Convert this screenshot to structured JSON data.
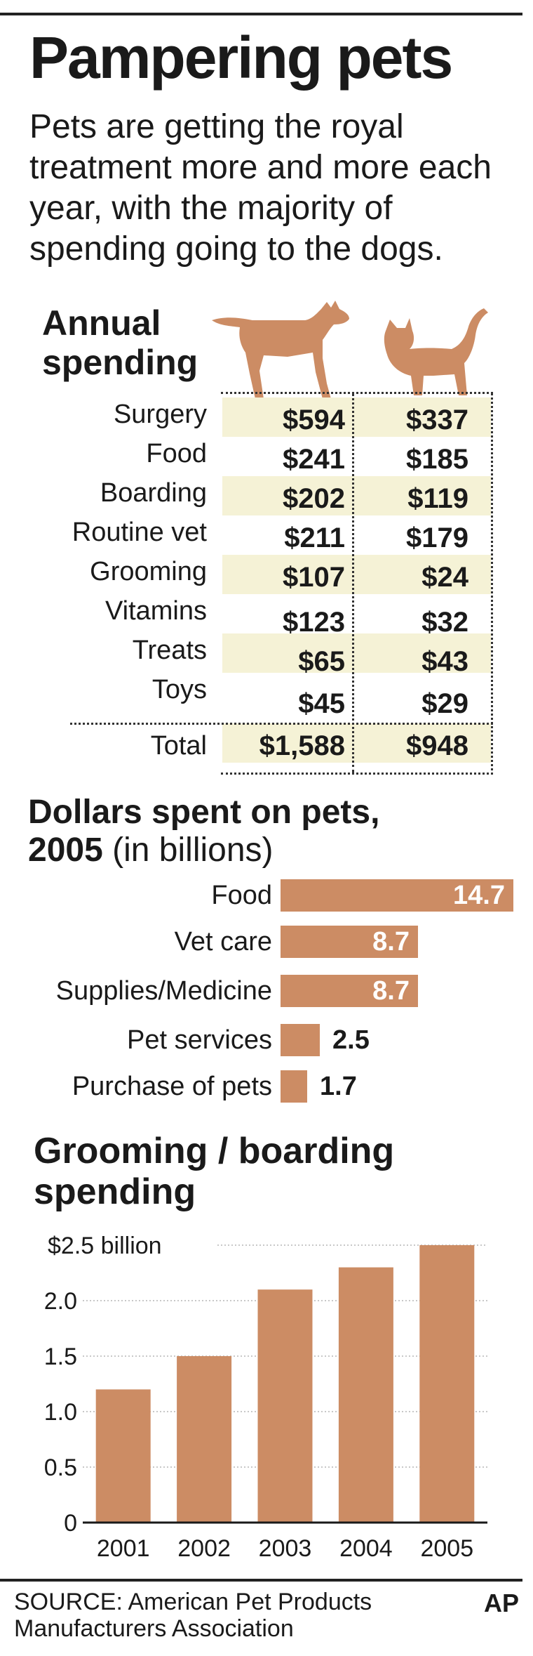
{
  "title": "Pampering pets",
  "intro": "Pets are getting the royal treatment more and more each year, with the majority of spending going to the dogs.",
  "annual": {
    "heading_line1": "Annual",
    "heading_line2": "spending",
    "rows": [
      {
        "label": "Surgery",
        "dog": "$594",
        "cat": "$337"
      },
      {
        "label": "Food",
        "dog": "$241",
        "cat": "$185"
      },
      {
        "label": "Boarding",
        "dog": "$202",
        "cat": "$119"
      },
      {
        "label": "Routine vet",
        "dog": "$211",
        "cat": "$179"
      },
      {
        "label": "Grooming",
        "dog": "$107",
        "cat": "$24"
      },
      {
        "label": "Vitamins",
        "dog": "$123",
        "cat": "$32"
      },
      {
        "label": "Treats",
        "dog": "$65",
        "cat": "$43"
      },
      {
        "label": "Toys",
        "dog": "$45",
        "cat": "$29"
      }
    ],
    "total": {
      "label": "Total",
      "dog": "$1,588",
      "cat": "$948"
    },
    "icons": [
      "dog-icon",
      "cat-icon"
    ],
    "stripe_color": "#f5f2d6"
  },
  "dollars": {
    "heading_bold_line1": "Dollars spent on pets,",
    "heading_bold_year": "2005",
    "heading_unit": " (in billions)"
  },
  "grooming": {
    "heading_line1": "Grooming / boarding",
    "heading_line2": "spending"
  },
  "chart_data": [
    {
      "type": "bar",
      "orientation": "horizontal",
      "categories": [
        "Food",
        "Vet care",
        "Supplies/Medicine",
        "Pet services",
        "Purchase of pets"
      ],
      "values": [
        14.7,
        8.7,
        8.7,
        2.5,
        1.7
      ],
      "value_labels": [
        "14.7",
        "8.7",
        "8.7",
        "2.5",
        "1.7"
      ],
      "title": "Dollars spent on pets, 2005 (in billions)",
      "bar_color": "#cc8c64"
    },
    {
      "type": "bar",
      "categories": [
        "2001",
        "2002",
        "2003",
        "2004",
        "2005"
      ],
      "values": [
        1.2,
        1.5,
        2.1,
        2.3,
        2.5
      ],
      "title": "Grooming / boarding spending",
      "ylim": [
        0,
        2.5
      ],
      "yticks": [
        "0",
        "0.5",
        "1.0",
        "1.5",
        "2.0",
        "$2.5 billion"
      ],
      "ytick_values": [
        0,
        0.5,
        1.0,
        1.5,
        2.0,
        2.5
      ],
      "grid": true,
      "bar_color": "#cc8c64"
    }
  ],
  "source": "SOURCE: American Pet Products Manufacturers Association",
  "credit": "AP",
  "colors": {
    "accent": "#cc8c64",
    "rule": "#222222"
  }
}
